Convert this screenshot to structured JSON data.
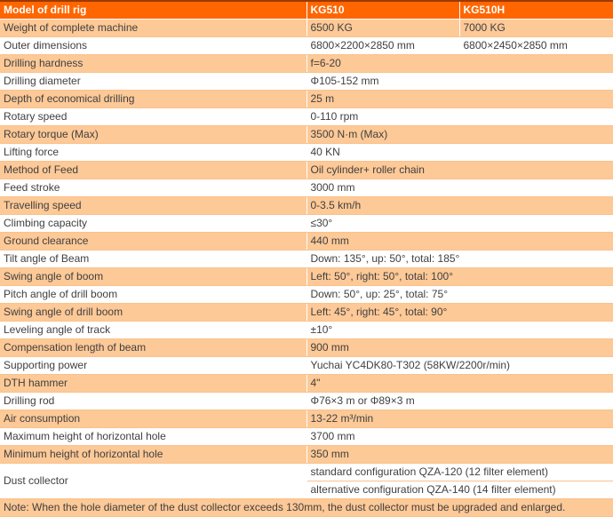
{
  "colors": {
    "header_bg": "#ff6600",
    "header_text": "#ffffff",
    "shade_bg": "#fdc997",
    "row_border": "#f9c28c",
    "top_border": "#9c3a00",
    "body_text": "#404040"
  },
  "header": {
    "model": "Model of drill rig",
    "kg510": "KG510",
    "kg510h": "KG510H"
  },
  "rows": [
    {
      "label": "Weight of complete machine",
      "v1": "6500 KG",
      "v2": "7000 KG"
    },
    {
      "label": "Outer dimensions",
      "v1": "6800×2200×2850 mm",
      "v2": "6800×2450×2850 mm"
    },
    {
      "label": "Drilling hardness",
      "value": "f=6-20"
    },
    {
      "label": "Drilling diameter",
      "value": "Φ105-152 mm"
    },
    {
      "label": "Depth of economical drilling",
      "value": "25 m"
    },
    {
      "label": "Rotary speed",
      "value": "0-110 rpm"
    },
    {
      "label": "Rotary torque (Max)",
      "value": "3500 N·m (Max)"
    },
    {
      "label": "Lifting force",
      "value": "40 KN"
    },
    {
      "label": "Method of Feed",
      "value": "Oil cylinder+ roller chain"
    },
    {
      "label": "Feed stroke",
      "value": "3000 mm"
    },
    {
      "label": "Travelling speed",
      "value": "0-3.5 km/h"
    },
    {
      "label": "Climbing capacity",
      "value": "≤30°"
    },
    {
      "label": "Ground clearance",
      "value": "440 mm"
    },
    {
      "label": "Tilt angle of Beam",
      "value": "Down: 135°, up: 50°, total: 185°"
    },
    {
      "label": "Swing angle of boom",
      "value": "Left: 50°, right: 50°, total: 100°"
    },
    {
      "label": "Pitch angle of drill boom",
      "value": "Down: 50°, up: 25°, total: 75°"
    },
    {
      "label": "Swing angle of drill boom",
      "value": "Left: 45°, right: 45°, total: 90°"
    },
    {
      "label": "Leveling angle of track",
      "value": "±10°"
    },
    {
      "label": "Compensation length of beam",
      "value": "900 mm"
    },
    {
      "label": "Supporting power",
      "value": "Yuchai YC4DK80-T302 (58KW/2200r/min)"
    },
    {
      "label": "DTH hammer",
      "value": "4\""
    },
    {
      "label": "Drilling rod",
      "value": "Φ76×3 m or Φ89×3 m"
    },
    {
      "label": "Air consumption",
      "value": "13-22 m³/min"
    },
    {
      "label": "Maximum height of horizontal hole",
      "value": "3700 mm"
    },
    {
      "label": "Minimum height of horizontal hole",
      "value": "350 mm"
    }
  ],
  "dust": {
    "label": "Dust collector",
    "standard": "standard configuration QZA-120 (12 filter element)",
    "alternative": "alternative configuration QZA-140 (14 filter element)"
  },
  "note": "Note: When the hole diameter of the dust collector exceeds 130mm, the dust collector must be upgraded and enlarged."
}
